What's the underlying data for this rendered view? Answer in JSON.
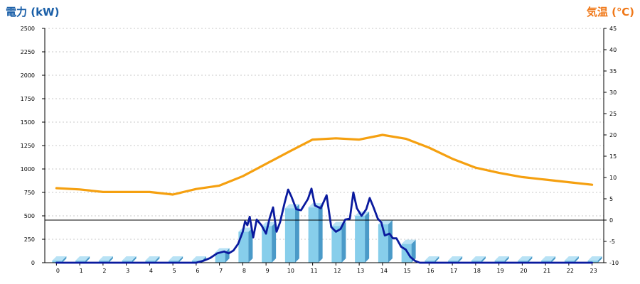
{
  "chart_data": {
    "type": "bar+line",
    "left_axis": {
      "label": "電力 (kW)",
      "min": 0,
      "max": 2500,
      "step": 250,
      "color": "#1a5fa8"
    },
    "right_axis": {
      "label": "気温 (℃)",
      "min": -10,
      "max": 45,
      "step": 5,
      "color": "#f07818"
    },
    "x_ticks": [
      "0",
      "1",
      "2",
      "3",
      "4",
      "5",
      "6",
      "7",
      "8",
      "9",
      "10",
      "11",
      "12",
      "13",
      "14",
      "15",
      "16",
      "17",
      "18",
      "19",
      "20",
      "21",
      "22",
      "23"
    ],
    "grid": true,
    "reference_line_temperature": 0,
    "bars": {
      "axis": "left",
      "color": "#87ceeb",
      "values": [
        0,
        0,
        0,
        0,
        0,
        0,
        0,
        110,
        330,
        390,
        580,
        590,
        390,
        500,
        410,
        200,
        0,
        0,
        0,
        0,
        0,
        0,
        0,
        0
      ]
    },
    "power_line": {
      "axis": "left",
      "color": "#0a1a9e",
      "points": [
        [
          0,
          0
        ],
        [
          1,
          0
        ],
        [
          2,
          0
        ],
        [
          3,
          0
        ],
        [
          4,
          0
        ],
        [
          5,
          0
        ],
        [
          6,
          0
        ],
        [
          6.3,
          20
        ],
        [
          6.6,
          50
        ],
        [
          6.9,
          100
        ],
        [
          7.2,
          120
        ],
        [
          7.4,
          100
        ],
        [
          7.6,
          130
        ],
        [
          7.8,
          200
        ],
        [
          8.0,
          330
        ],
        [
          8.1,
          440
        ],
        [
          8.2,
          400
        ],
        [
          8.3,
          490
        ],
        [
          8.45,
          270
        ],
        [
          8.6,
          460
        ],
        [
          8.8,
          400
        ],
        [
          9.0,
          310
        ],
        [
          9.15,
          470
        ],
        [
          9.3,
          590
        ],
        [
          9.45,
          330
        ],
        [
          9.6,
          430
        ],
        [
          9.8,
          640
        ],
        [
          9.95,
          780
        ],
        [
          10.1,
          700
        ],
        [
          10.3,
          570
        ],
        [
          10.5,
          560
        ],
        [
          10.8,
          680
        ],
        [
          10.95,
          790
        ],
        [
          11.1,
          610
        ],
        [
          11.35,
          580
        ],
        [
          11.6,
          720
        ],
        [
          11.8,
          380
        ],
        [
          12.0,
          330
        ],
        [
          12.2,
          360
        ],
        [
          12.4,
          460
        ],
        [
          12.6,
          470
        ],
        [
          12.75,
          750
        ],
        [
          12.9,
          580
        ],
        [
          13.1,
          500
        ],
        [
          13.3,
          570
        ],
        [
          13.45,
          690
        ],
        [
          13.6,
          600
        ],
        [
          13.8,
          470
        ],
        [
          13.95,
          430
        ],
        [
          14.1,
          290
        ],
        [
          14.3,
          310
        ],
        [
          14.45,
          260
        ],
        [
          14.6,
          260
        ],
        [
          14.8,
          170
        ],
        [
          15.0,
          140
        ],
        [
          15.2,
          60
        ],
        [
          15.4,
          20
        ],
        [
          15.6,
          0
        ],
        [
          16,
          0
        ],
        [
          17,
          0
        ],
        [
          18,
          0
        ],
        [
          19,
          0
        ],
        [
          20,
          0
        ],
        [
          21,
          0
        ],
        [
          22,
          0
        ],
        [
          23,
          0
        ]
      ]
    },
    "temperature_line": {
      "axis": "right",
      "color": "#f5a010",
      "values": [
        7.5,
        7.2,
        6.6,
        6.6,
        6.6,
        6.0,
        7.3,
        8.1,
        10.3,
        13.2,
        16.1,
        18.9,
        19.2,
        18.9,
        20.0,
        19.1,
        17.0,
        14.4,
        12.3,
        11.1,
        10.1,
        9.5,
        8.9,
        8.3
      ]
    }
  }
}
